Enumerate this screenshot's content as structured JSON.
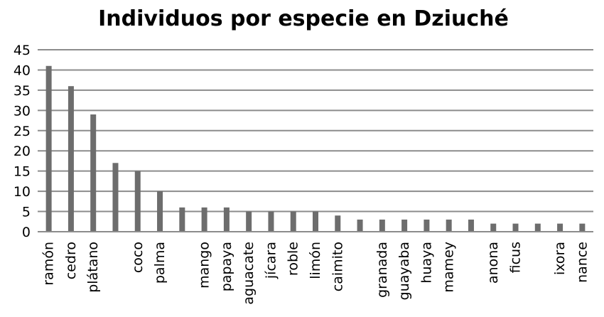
{
  "chart_data": {
    "type": "bar",
    "title": "Individuos por especie en Dziuché",
    "xlabel": "",
    "ylabel": "",
    "ylim": [
      0,
      45
    ],
    "yticks": [
      0,
      5,
      10,
      15,
      20,
      25,
      30,
      35,
      40,
      45
    ],
    "grid": true,
    "legend": "none",
    "bar_color": "#6d6d6d",
    "grid_color": "#8c8c8c",
    "categories": [
      "ramón",
      "cedro",
      "plátano",
      "",
      "coco",
      "palma",
      "",
      "mango",
      "papaya",
      "aguacate",
      "jícara",
      "roble",
      "limón",
      "caimito",
      "",
      "granada",
      "guayaba",
      "huaya",
      "mamey",
      "",
      "anona",
      "ficus",
      "",
      "ixora",
      "nance"
    ],
    "values": [
      41,
      36,
      29,
      17,
      15,
      10,
      6,
      6,
      6,
      5,
      5,
      5,
      5,
      4,
      3,
      3,
      3,
      3,
      3,
      3,
      2,
      2,
      2,
      2,
      2
    ]
  }
}
